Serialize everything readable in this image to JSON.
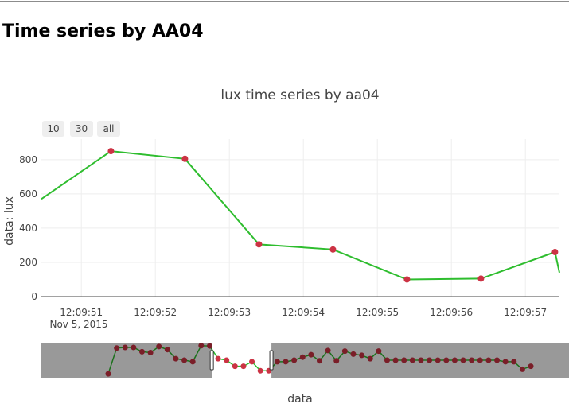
{
  "page": {
    "heading": "Time series by AA04"
  },
  "rangeselector": {
    "buttons": [
      "10",
      "30",
      "all"
    ]
  },
  "chart_data": {
    "type": "line",
    "title": "lux time series by aa04",
    "xlabel": "data",
    "ylabel": "data: lux",
    "x_date_label": "Nov 5, 2015",
    "xticks": [
      "12:09:51",
      "12:09:52",
      "12:09:53",
      "12:09:54",
      "12:09:55",
      "12:09:56",
      "12:09:57"
    ],
    "xlim": [
      "12:09:50.460",
      "12:09:57.460"
    ],
    "yticks": [
      0,
      200,
      400,
      600,
      800
    ],
    "ylim": [
      0,
      920
    ],
    "grid": true,
    "line_color": "#2ebd2e",
    "marker_color": "#cc3344",
    "series": [
      {
        "x": [
          "12:09:51.400",
          "12:09:52.400",
          "12:09:53.400",
          "12:09:54.400",
          "12:09:55.400",
          "12:09:56.400",
          "12:09:57.400"
        ],
        "values": [
          850,
          805,
          305,
          275,
          100,
          105,
          260
        ]
      }
    ],
    "visible_edge_values": {
      "left": 570,
      "right": 140
    },
    "rangeslider": {
      "values": [
        0.05,
        0.9,
        0.92,
        0.92,
        0.78,
        0.75,
        0.95,
        0.85,
        0.55,
        0.5,
        0.45,
        0.98,
        0.97,
        0.55,
        0.5,
        0.3,
        0.3,
        0.45,
        0.15,
        0.15,
        0.45,
        0.45,
        0.5,
        0.6,
        0.68,
        0.48,
        0.82,
        0.48,
        0.8,
        0.7,
        0.66,
        0.55,
        0.8,
        0.5,
        0.5,
        0.5,
        0.5,
        0.5,
        0.5,
        0.5,
        0.5,
        0.5,
        0.5,
        0.5,
        0.5,
        0.5,
        0.5,
        0.45,
        0.45,
        0.2,
        0.3
      ],
      "window": [
        0.323,
        0.436
      ]
    }
  }
}
